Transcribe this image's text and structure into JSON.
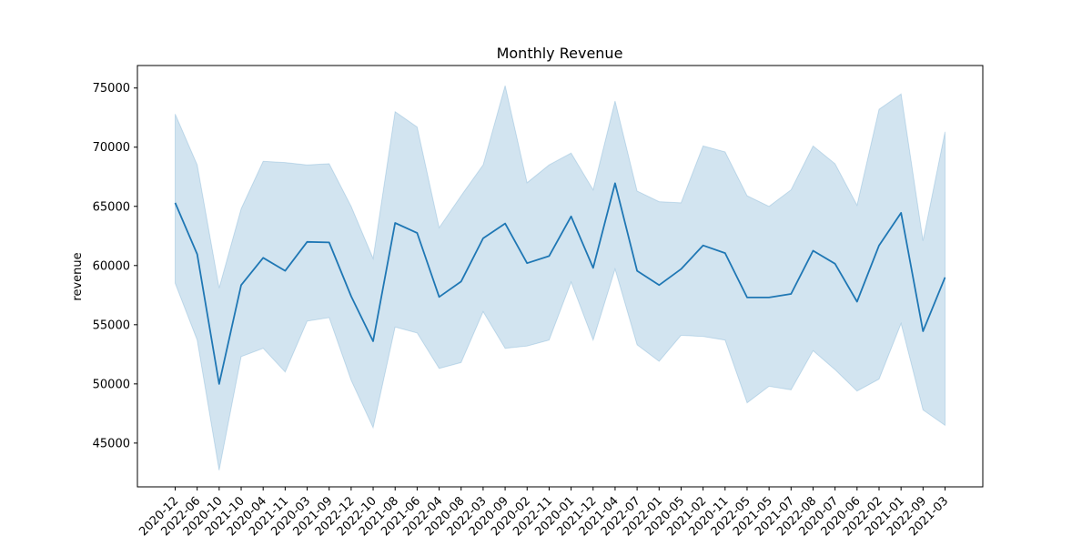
{
  "chart_data": {
    "type": "line",
    "title": "Monthly Revenue",
    "xlabel": "",
    "ylabel": "revenue",
    "ylim": [
      41300,
      76900
    ],
    "yticks": [
      45000,
      50000,
      55000,
      60000,
      65000,
      70000,
      75000
    ],
    "grid": false,
    "legend": "none",
    "categories": [
      "2020-12",
      "2022-06",
      "2020-10",
      "2021-10",
      "2020-04",
      "2021-11",
      "2020-03",
      "2021-09",
      "2022-12",
      "2022-10",
      "2021-08",
      "2021-06",
      "2022-04",
      "2020-08",
      "2022-03",
      "2020-09",
      "2020-02",
      "2022-11",
      "2020-01",
      "2021-12",
      "2021-04",
      "2022-07",
      "2022-01",
      "2020-05",
      "2021-02",
      "2020-11",
      "2022-05",
      "2021-05",
      "2021-07",
      "2022-08",
      "2020-07",
      "2020-06",
      "2022-02",
      "2021-01",
      "2022-09",
      "2021-03"
    ],
    "series": [
      {
        "values": [
          65300,
          60950,
          50000,
          58350,
          60650,
          59550,
          62000,
          61950,
          57400,
          53600,
          63600,
          62750,
          57350,
          58650,
          62300,
          63550,
          60200,
          60800,
          64150,
          59800,
          66950,
          59550,
          58350,
          59700,
          61700,
          61050,
          57300,
          57300,
          57600,
          61250,
          60150,
          56950,
          61700,
          64450,
          54450,
          59000
        ],
        "upper": [
          72800,
          68500,
          58100,
          64800,
          68800,
          68700,
          68500,
          68600,
          65000,
          60600,
          73000,
          71700,
          63200,
          65900,
          68500,
          75200,
          67000,
          68500,
          69500,
          66400,
          73900,
          66300,
          65400,
          65300,
          70100,
          69600,
          65900,
          65000,
          66400,
          70100,
          68600,
          65100,
          73200,
          74500,
          62100,
          71300
        ],
        "lower": [
          58500,
          53700,
          42700,
          52300,
          53000,
          51000,
          55300,
          55600,
          50300,
          46300,
          54800,
          54300,
          51300,
          51800,
          56100,
          53000,
          53200,
          53700,
          58600,
          53700,
          59700,
          53300,
          51900,
          54100,
          54000,
          53700,
          48400,
          49800,
          49500,
          52800,
          51200,
          49400,
          50400,
          55100,
          47800,
          46500
        ]
      }
    ],
    "colors": {
      "line": "#1f77b4",
      "band": "#1f77b4"
    }
  }
}
